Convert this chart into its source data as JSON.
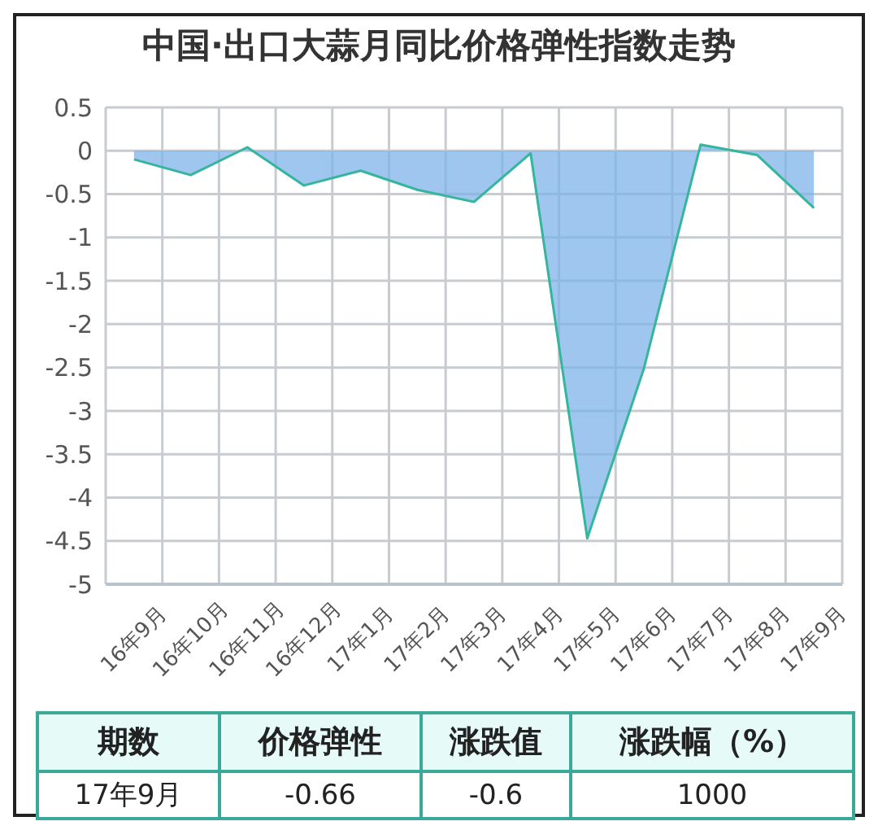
{
  "chart_data": {
    "type": "area",
    "title": "中国·出口大蒜月同比价格弹性指数走势",
    "categories": [
      "16年9月",
      "16年10月",
      "16年11月",
      "16年12月",
      "17年1月",
      "17年2月",
      "17年3月",
      "17年4月",
      "17年5月",
      "17年6月",
      "17年7月",
      "17年8月",
      "17年9月"
    ],
    "series": [
      {
        "color": "#7db3e8",
        "values": [
          -0.1,
          -0.28,
          0.04,
          -0.4,
          -0.23,
          -0.45,
          -0.59,
          -0.03,
          -4.47,
          -2.51,
          0.07,
          -0.05,
          -0.66
        ]
      }
    ],
    "ylim": [
      -5,
      0.5
    ],
    "yticks": [
      0.5,
      0,
      -0.5,
      -1,
      -1.5,
      -2,
      -2.5,
      -3,
      -3.5,
      -4,
      -4.5,
      -5
    ],
    "grid": true,
    "annotations": [
      "期数",
      "价格弹性",
      "涨跌值",
      "涨跌幅（%）",
      "17年9月",
      "-0.66",
      "-0.6",
      "1000"
    ]
  }
}
